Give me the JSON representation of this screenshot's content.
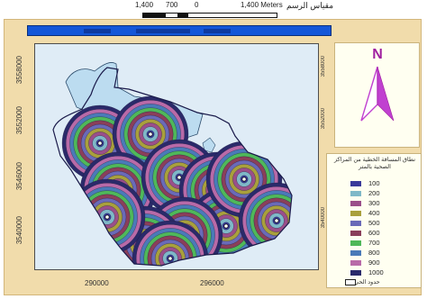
{
  "scale_bar": {
    "label_left": "1,400",
    "label_mid": "700",
    "label_zero": "0",
    "label_right": "1,400 Meters",
    "title": "مقياس الرسم"
  },
  "north_arrow": {
    "letter": "N",
    "color": "#a020a0"
  },
  "map": {
    "y_ticks": [
      "3558000",
      "3552000",
      "3546000",
      "3540000"
    ],
    "x_ticks": [
      "290000",
      "296000"
    ],
    "bands": [
      {
        "value": "100",
        "color": "#3a3a9a"
      },
      {
        "value": "200",
        "color": "#7fb8c8"
      },
      {
        "value": "300",
        "color": "#9a4f8a"
      },
      {
        "value": "400",
        "color": "#a9a03c"
      },
      {
        "value": "500",
        "color": "#6a6ab8"
      },
      {
        "value": "600",
        "color": "#8a3f5a"
      },
      {
        "value": "700",
        "color": "#4fb85a"
      },
      {
        "value": "800",
        "color": "#4a7ab8"
      },
      {
        "value": "900",
        "color": "#b86aa8"
      },
      {
        "value": "1000",
        "color": "#2a2a6a"
      }
    ]
  },
  "legend": {
    "title": "نطاق المسافة الخطية من المراكز الصحية بالمتر",
    "footer": "حدود الحي"
  }
}
